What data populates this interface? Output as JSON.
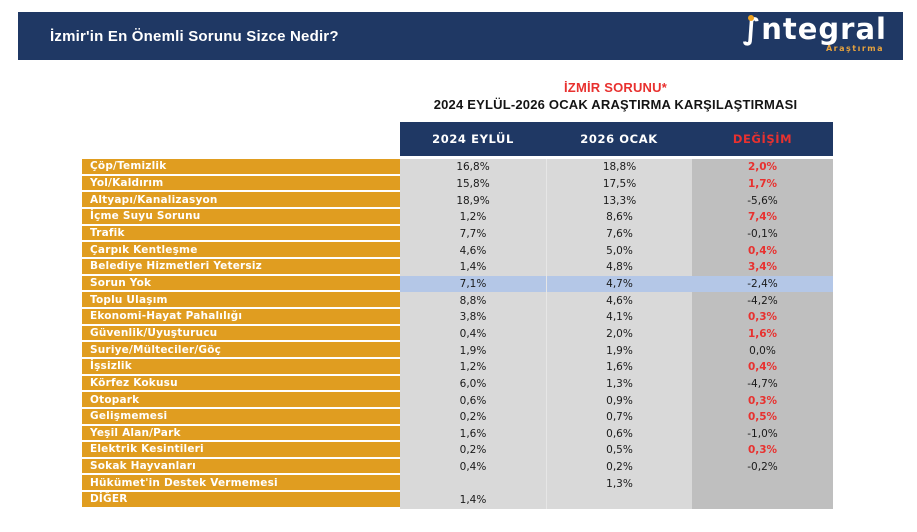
{
  "banner": {
    "title": "İzmir'in En Önemli Sorunu Sizce Nedir?",
    "logo_glyph": "∫",
    "logo_word": "ntegral",
    "logo_sub": "Araştırma"
  },
  "titles": {
    "line1": "İZMİR SORUNU*",
    "line2": "2024 EYLÜL-2026 OCAK ARAŞTIRMA KARŞILAŞTIRMASI"
  },
  "colors": {
    "navy": "#1f3864",
    "orange_label": "#e09d20",
    "light_gray_col": "#d9d9d9",
    "dark_gray_col": "#bfbfbf",
    "highlight_blue": "#b4c7e7",
    "red": "#e8312f",
    "logo_dot_orange": "#f0a321"
  },
  "chart_data": {
    "type": "table",
    "title": "İZMİR SORUNU* — 2024 EYLÜL-2026 OCAK ARAŞTIRMA KARŞILAŞTIRMASI",
    "columns": [
      "2024 EYLÜL",
      "2026 OCAK",
      "DEĞİŞİM"
    ],
    "rows": [
      {
        "label": "Çöp/Temizlik",
        "eylul_2024": "16,8%",
        "ocak_2026": "18,8%",
        "degisim": "2,0%",
        "degisim_color": "red",
        "highlight": false
      },
      {
        "label": "Yol/Kaldırım",
        "eylul_2024": "15,8%",
        "ocak_2026": "17,5%",
        "degisim": "1,7%",
        "degisim_color": "red",
        "highlight": false
      },
      {
        "label": "Altyapı/Kanalizasyon",
        "eylul_2024": "18,9%",
        "ocak_2026": "13,3%",
        "degisim": "-5,6%",
        "degisim_color": "dark",
        "highlight": false
      },
      {
        "label": "İçme Suyu Sorunu",
        "eylul_2024": "1,2%",
        "ocak_2026": "8,6%",
        "degisim": "7,4%",
        "degisim_color": "red",
        "highlight": false
      },
      {
        "label": "Trafik",
        "eylul_2024": "7,7%",
        "ocak_2026": "7,6%",
        "degisim": "-0,1%",
        "degisim_color": "dark",
        "highlight": false
      },
      {
        "label": "Çarpık Kentleşme",
        "eylul_2024": "4,6%",
        "ocak_2026": "5,0%",
        "degisim": "0,4%",
        "degisim_color": "red",
        "highlight": false
      },
      {
        "label": "Belediye Hizmetleri Yetersiz",
        "eylul_2024": "1,4%",
        "ocak_2026": "4,8%",
        "degisim": "3,4%",
        "degisim_color": "red",
        "highlight": false
      },
      {
        "label": "Sorun Yok",
        "eylul_2024": "7,1%",
        "ocak_2026": "4,7%",
        "degisim": "-2,4%",
        "degisim_color": "dark",
        "highlight": true
      },
      {
        "label": "Toplu Ulaşım",
        "eylul_2024": "8,8%",
        "ocak_2026": "4,6%",
        "degisim": "-4,2%",
        "degisim_color": "dark",
        "highlight": false
      },
      {
        "label": "Ekonomi-Hayat Pahalılığı",
        "eylul_2024": "3,8%",
        "ocak_2026": "4,1%",
        "degisim": "0,3%",
        "degisim_color": "red",
        "highlight": false
      },
      {
        "label": "Güvenlik/Uyuşturucu",
        "eylul_2024": "0,4%",
        "ocak_2026": "2,0%",
        "degisim": "1,6%",
        "degisim_color": "red",
        "highlight": false
      },
      {
        "label": "Suriye/Mülteciler/Göç",
        "eylul_2024": "1,9%",
        "ocak_2026": "1,9%",
        "degisim": "0,0%",
        "degisim_color": "dark",
        "highlight": false
      },
      {
        "label": "İşsizlik",
        "eylul_2024": "1,2%",
        "ocak_2026": "1,6%",
        "degisim": "0,4%",
        "degisim_color": "red",
        "highlight": false
      },
      {
        "label": "Körfez Kokusu",
        "eylul_2024": "6,0%",
        "ocak_2026": "1,3%",
        "degisim": "-4,7%",
        "degisim_color": "dark",
        "highlight": false
      },
      {
        "label": "Otopark",
        "eylul_2024": "0,6%",
        "ocak_2026": "0,9%",
        "degisim": "0,3%",
        "degisim_color": "red",
        "highlight": false
      },
      {
        "label": "Gelişmemesi",
        "eylul_2024": "0,2%",
        "ocak_2026": "0,7%",
        "degisim": "0,5%",
        "degisim_color": "red",
        "highlight": false
      },
      {
        "label": "Yeşil Alan/Park",
        "eylul_2024": "1,6%",
        "ocak_2026": "0,6%",
        "degisim": "-1,0%",
        "degisim_color": "dark",
        "highlight": false
      },
      {
        "label": "Elektrik Kesintileri",
        "eylul_2024": "0,2%",
        "ocak_2026": "0,5%",
        "degisim": "0,3%",
        "degisim_color": "red",
        "highlight": false
      },
      {
        "label": "Sokak Hayvanları",
        "eylul_2024": "0,4%",
        "ocak_2026": "0,2%",
        "degisim": "-0,2%",
        "degisim_color": "dark",
        "highlight": false
      },
      {
        "label": "Hükümet'in Destek Vermemesi",
        "eylul_2024": "",
        "ocak_2026": "1,3%",
        "degisim": "",
        "degisim_color": "dark",
        "highlight": false
      },
      {
        "label": "DİĞER",
        "eylul_2024": "1,4%",
        "ocak_2026": "",
        "degisim": "",
        "degisim_color": "dark",
        "highlight": false
      }
    ]
  }
}
